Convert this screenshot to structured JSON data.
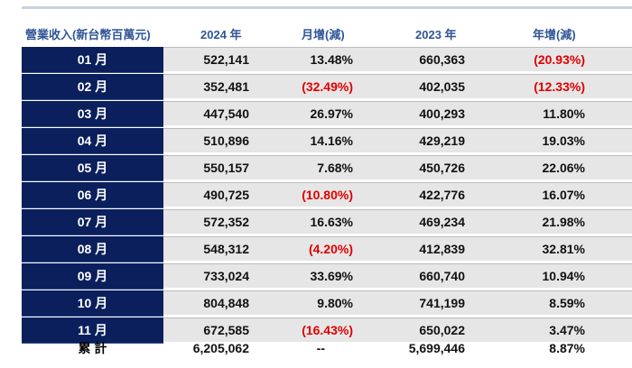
{
  "header": {
    "label": "營業收入(新台幣百萬元)",
    "y2024": "2024 年",
    "mom": "月增(減)",
    "y2023": "2023 年",
    "yoy": "年增(減)"
  },
  "rows": [
    {
      "month": "01 月",
      "v2024": "522,141",
      "mom": "13.48%",
      "mom_neg": false,
      "v2023": "660,363",
      "yoy": "(20.93%)",
      "yoy_neg": true
    },
    {
      "month": "02 月",
      "v2024": "352,481",
      "mom": "(32.49%)",
      "mom_neg": true,
      "v2023": "402,035",
      "yoy": "(12.33%)",
      "yoy_neg": true
    },
    {
      "month": "03 月",
      "v2024": "447,540",
      "mom": "26.97%",
      "mom_neg": false,
      "v2023": "400,293",
      "yoy": "11.80%",
      "yoy_neg": false
    },
    {
      "month": "04 月",
      "v2024": "510,896",
      "mom": "14.16%",
      "mom_neg": false,
      "v2023": "429,219",
      "yoy": "19.03%",
      "yoy_neg": false
    },
    {
      "month": "05 月",
      "v2024": "550,157",
      "mom": "7.68%",
      "mom_neg": false,
      "v2023": "450,726",
      "yoy": "22.06%",
      "yoy_neg": false
    },
    {
      "month": "06 月",
      "v2024": "490,725",
      "mom": "(10.80%)",
      "mom_neg": true,
      "v2023": "422,776",
      "yoy": "16.07%",
      "yoy_neg": false
    },
    {
      "month": "07 月",
      "v2024": "572,352",
      "mom": "16.63%",
      "mom_neg": false,
      "v2023": "469,234",
      "yoy": "21.98%",
      "yoy_neg": false
    },
    {
      "month": "08 月",
      "v2024": "548,312",
      "mom": "(4.20%)",
      "mom_neg": true,
      "v2023": "412,839",
      "yoy": "32.81%",
      "yoy_neg": false
    },
    {
      "month": "09 月",
      "v2024": "733,024",
      "mom": "33.69%",
      "mom_neg": false,
      "v2023": "660,740",
      "yoy": "10.94%",
      "yoy_neg": false
    },
    {
      "month": "10 月",
      "v2024": "804,848",
      "mom": "9.80%",
      "mom_neg": false,
      "v2023": "741,199",
      "yoy": "8.59%",
      "yoy_neg": false
    },
    {
      "month": "11 月",
      "v2024": "672,585",
      "mom": "(16.43%)",
      "mom_neg": true,
      "v2023": "650,022",
      "yoy": "3.47%",
      "yoy_neg": false
    }
  ],
  "total": {
    "label": "累 計",
    "v2024": "6,205,062",
    "mom": "--",
    "v2023": "5,699,446",
    "yoy": "8.87%"
  },
  "colors": {
    "navy": "#0a1f5c",
    "header_text": "#2f5597",
    "negative": "#e00000",
    "cell_bg": "#e6e6e6"
  }
}
